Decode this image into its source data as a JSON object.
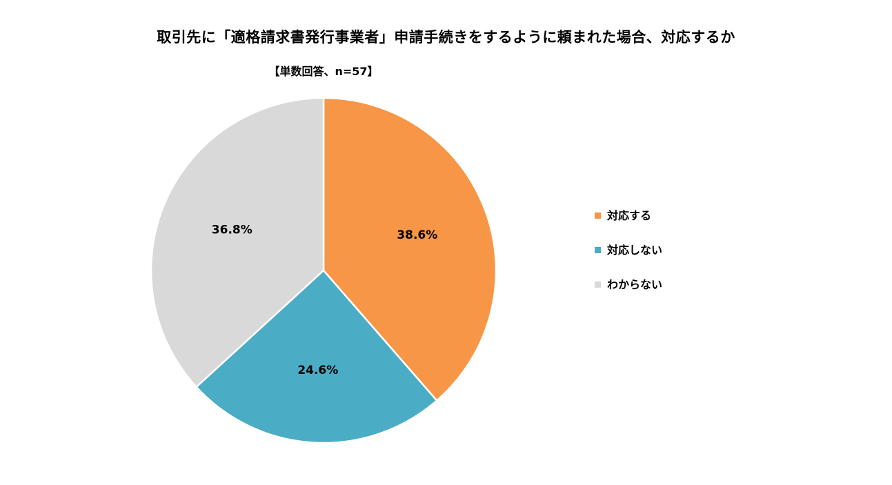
{
  "chart_data": {
    "type": "pie",
    "title": "取引先に「適格請求書発行事業者」申請手続きをするように頼まれた場合、対応するか",
    "subtitle": "【単数回答、n=57】",
    "legend_position": "right",
    "slices": [
      {
        "label": "対応する",
        "value": 38.6,
        "value_label": "38.6%",
        "color": "#F79646"
      },
      {
        "label": "対応しない",
        "value": 24.6,
        "value_label": "24.6%",
        "color": "#4BACC6"
      },
      {
        "label": "わからない",
        "value": 36.8,
        "value_label": "36.8%",
        "color": "#D9D9D9"
      }
    ]
  }
}
